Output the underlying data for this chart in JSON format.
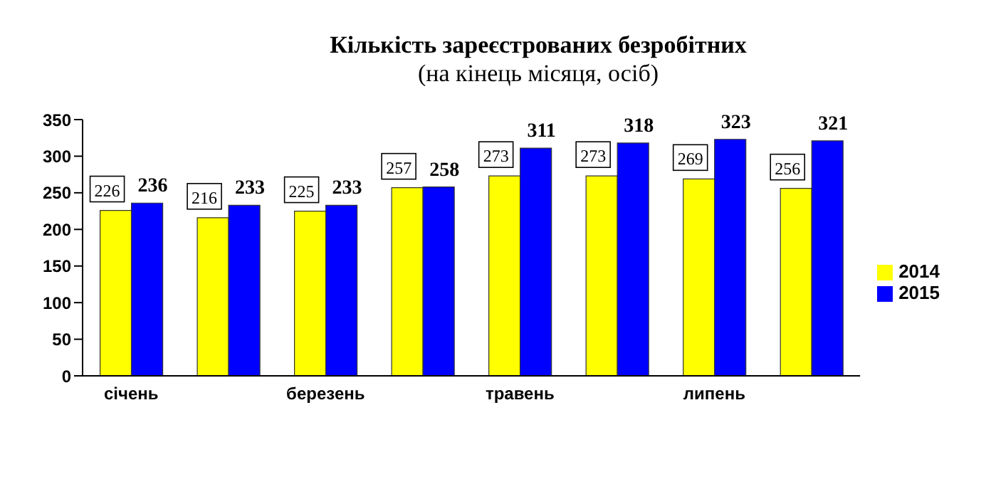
{
  "chart_data": {
    "type": "bar",
    "title": "Кількість зареєстрованих безробітних",
    "subtitle": "(на кінець місяця, осіб)",
    "categories": [
      "січень",
      null,
      "березень",
      null,
      "травень",
      null,
      "липень",
      null
    ],
    "series": [
      {
        "name": "2014",
        "color": "#ffff00",
        "values": [
          226,
          216,
          225,
          257,
          273,
          273,
          269,
          256
        ]
      },
      {
        "name": "2015",
        "color": "#0000ff",
        "values": [
          236,
          233,
          233,
          258,
          311,
          318,
          323,
          321
        ]
      }
    ],
    "ylim": [
      0,
      350
    ],
    "yticks": [
      0,
      50,
      100,
      150,
      200,
      250,
      300,
      350
    ],
    "legend": "right",
    "data_labels": true
  }
}
